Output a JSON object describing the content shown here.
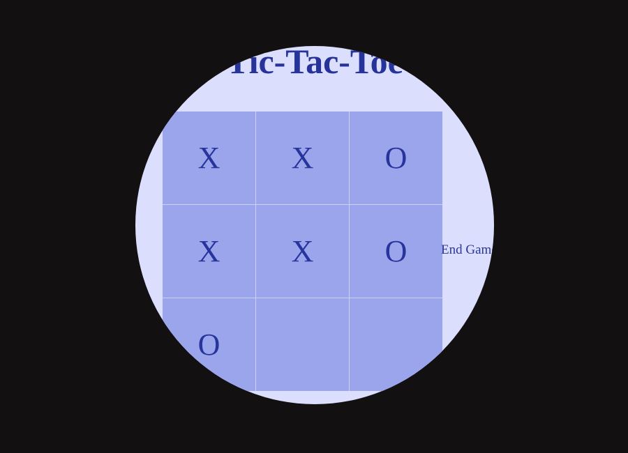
{
  "title": "Tic-Tac-Toe",
  "board": {
    "cells": [
      "X",
      "X",
      "O",
      "X",
      "X",
      "O",
      "O",
      "",
      ""
    ]
  },
  "end_game_label": "End Game",
  "colors": {
    "background": "#121010",
    "viewport": "#dcdefe",
    "cell": "#9ba5ec",
    "text": "#27349c"
  }
}
